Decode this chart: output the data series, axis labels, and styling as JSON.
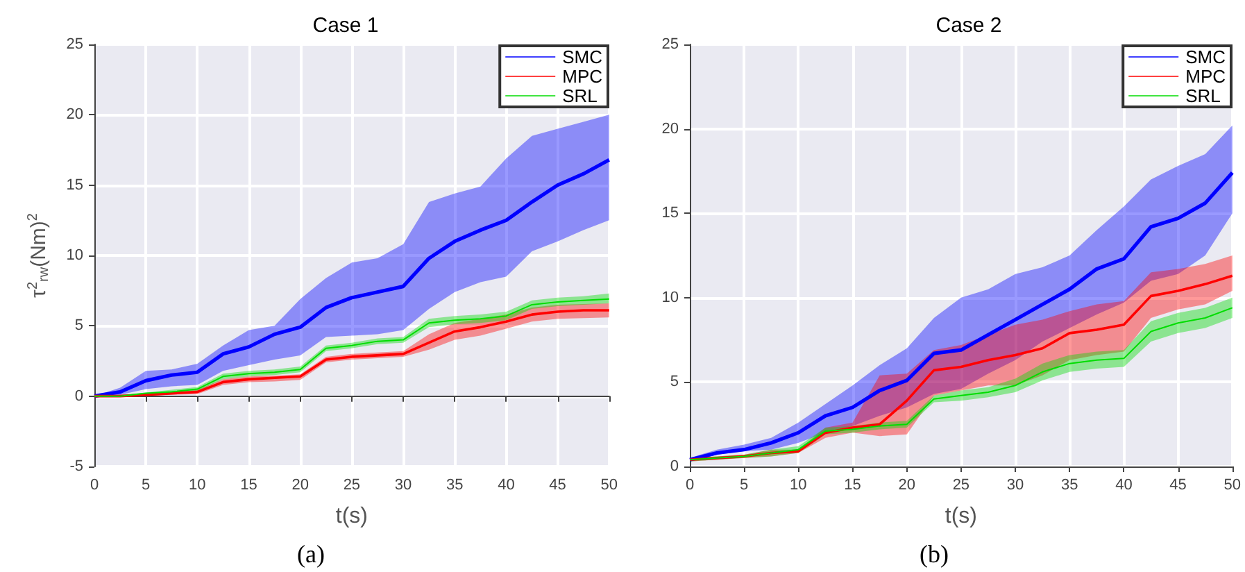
{
  "chart_data": [
    {
      "type": "line",
      "title": "Case 1",
      "xlabel": "t(s)",
      "ylabel": "τ$^{2}$$_{rw}$(Nm)$^{2}$",
      "annotations": [
        "(a)"
      ],
      "x": [
        0,
        2.5,
        5,
        7.5,
        10,
        12.5,
        15,
        17.5,
        20,
        22.5,
        25,
        27.5,
        30,
        32.5,
        35,
        37.5,
        40,
        42.5,
        45,
        47.5,
        50
      ],
      "series": [
        {
          "name": "SMC",
          "color": "#0000ff",
          "values": [
            0,
            0.3,
            1.1,
            1.5,
            1.7,
            3.0,
            3.5,
            4.4,
            4.9,
            6.3,
            7.0,
            7.4,
            7.8,
            9.8,
            11.0,
            11.8,
            12.5,
            13.8,
            15.0,
            15.8,
            16.8
          ],
          "lower": [
            0,
            0.1,
            0.5,
            0.7,
            0.8,
            1.8,
            2.2,
            2.6,
            2.9,
            4.2,
            4.3,
            4.4,
            4.7,
            6.2,
            7.4,
            8.1,
            8.5,
            10.3,
            11.0,
            11.8,
            12.5
          ],
          "upper": [
            0,
            0.6,
            1.8,
            1.9,
            2.3,
            3.6,
            4.7,
            5.0,
            6.9,
            8.4,
            9.5,
            9.8,
            10.8,
            13.8,
            14.4,
            14.9,
            16.9,
            18.5,
            19.0,
            19.5,
            20.0
          ]
        },
        {
          "name": "MPC",
          "color": "#ff0000",
          "values": [
            0,
            0,
            0.1,
            0.2,
            0.3,
            1.0,
            1.2,
            1.3,
            1.4,
            2.6,
            2.8,
            2.9,
            3.0,
            3.8,
            4.6,
            4.9,
            5.3,
            5.8,
            6.0,
            6.1,
            6.1
          ],
          "lower": [
            0,
            0,
            0,
            0.1,
            0.15,
            0.8,
            1.0,
            1.05,
            1.15,
            2.4,
            2.6,
            2.7,
            2.8,
            3.3,
            4.0,
            4.3,
            4.8,
            5.3,
            5.5,
            5.55,
            5.6
          ],
          "upper": [
            0,
            0.1,
            0.2,
            0.3,
            0.45,
            1.2,
            1.4,
            1.45,
            1.55,
            2.8,
            3.0,
            3.1,
            3.2,
            4.4,
            5.2,
            5.5,
            5.8,
            6.3,
            6.5,
            6.55,
            6.6
          ]
        },
        {
          "name": "SRL",
          "color": "#00dd00",
          "values": [
            0,
            0,
            0.2,
            0.3,
            0.5,
            1.4,
            1.6,
            1.7,
            1.9,
            3.4,
            3.6,
            3.9,
            4.0,
            5.2,
            5.4,
            5.5,
            5.7,
            6.5,
            6.7,
            6.8,
            6.9
          ],
          "lower": [
            0,
            0,
            0.05,
            0.15,
            0.35,
            1.2,
            1.4,
            1.5,
            1.7,
            3.2,
            3.4,
            3.7,
            3.8,
            4.9,
            5.1,
            5.2,
            5.4,
            6.2,
            6.4,
            6.5,
            6.6
          ],
          "upper": [
            0,
            0.1,
            0.25,
            0.45,
            0.65,
            1.6,
            1.8,
            1.9,
            2.1,
            3.6,
            3.8,
            4.1,
            4.2,
            5.5,
            5.7,
            5.8,
            6.0,
            6.8,
            7.0,
            7.1,
            7.3
          ]
        }
      ],
      "xlim": [
        0,
        50
      ],
      "xticks": [
        0,
        5,
        10,
        15,
        20,
        25,
        30,
        35,
        40,
        45,
        50
      ],
      "ylim": [
        -5,
        25
      ],
      "yticks": [
        -5,
        0,
        5,
        10,
        15,
        20,
        25
      ],
      "grid": true,
      "legend": "top right",
      "marker": "none",
      "line_style": "solid"
    },
    {
      "type": "line",
      "title": "Case 2",
      "xlabel": "t(s)",
      "annotations": [
        "(b)"
      ],
      "x": [
        0,
        2.5,
        5,
        7.5,
        10,
        12.5,
        15,
        17.5,
        20,
        22.5,
        25,
        27.5,
        30,
        32.5,
        35,
        37.5,
        40,
        42.5,
        45,
        47.5,
        50
      ],
      "series": [
        {
          "name": "SMC",
          "color": "#0000ff",
          "values": [
            0.4,
            0.8,
            1.0,
            1.4,
            2.0,
            3.0,
            3.5,
            4.5,
            5.1,
            6.7,
            6.9,
            7.8,
            8.7,
            9.6,
            10.5,
            11.7,
            12.3,
            14.2,
            14.7,
            15.6,
            17.4
          ],
          "lower": [
            0.3,
            0.7,
            0.9,
            1.0,
            1.4,
            2.0,
            2.4,
            3.0,
            3.5,
            4.3,
            4.6,
            5.5,
            6.3,
            7.4,
            8.2,
            9.0,
            9.7,
            11.0,
            11.4,
            12.5,
            15.0
          ],
          "upper": [
            0.5,
            1.0,
            1.3,
            1.7,
            2.6,
            3.7,
            4.8,
            6.0,
            7.0,
            8.8,
            10.0,
            10.5,
            11.4,
            11.8,
            12.5,
            14.0,
            15.4,
            17.0,
            17.8,
            18.5,
            20.2
          ]
        },
        {
          "name": "MPC",
          "color": "#ff0000",
          "values": [
            0.4,
            0.5,
            0.6,
            0.8,
            0.9,
            2.0,
            2.3,
            2.5,
            3.9,
            5.7,
            5.9,
            6.3,
            6.6,
            7.0,
            7.9,
            8.1,
            8.4,
            10.1,
            10.4,
            10.8,
            11.3
          ],
          "lower": [
            0.3,
            0.4,
            0.5,
            0.6,
            0.8,
            1.7,
            2.0,
            1.8,
            1.9,
            4.2,
            4.5,
            4.8,
            4.8,
            5.4,
            6.3,
            6.6,
            6.8,
            8.8,
            9.3,
            9.6,
            10.4
          ],
          "upper": [
            0.5,
            0.6,
            0.7,
            1.0,
            1.0,
            2.3,
            2.6,
            5.4,
            5.5,
            6.9,
            7.2,
            7.8,
            8.4,
            8.7,
            9.2,
            9.6,
            9.8,
            11.5,
            11.7,
            12.0,
            12.5
          ]
        },
        {
          "name": "SRL",
          "color": "#00dd00",
          "values": [
            0.4,
            0.5,
            0.6,
            0.8,
            1.0,
            2.1,
            2.2,
            2.4,
            2.5,
            4.0,
            4.2,
            4.4,
            4.8,
            5.6,
            6.1,
            6.3,
            6.4,
            8.0,
            8.5,
            8.8,
            9.4
          ],
          "lower": [
            0.3,
            0.4,
            0.5,
            0.6,
            0.8,
            1.9,
            2.0,
            2.2,
            2.3,
            3.8,
            3.9,
            4.1,
            4.4,
            5.1,
            5.6,
            5.8,
            5.9,
            7.4,
            7.9,
            8.2,
            8.8
          ],
          "upper": [
            0.5,
            0.6,
            0.7,
            1.0,
            1.2,
            2.3,
            2.4,
            2.6,
            2.7,
            4.2,
            4.5,
            4.7,
            5.2,
            6.1,
            6.6,
            6.8,
            6.9,
            8.6,
            9.1,
            9.4,
            10.0
          ]
        }
      ],
      "xlim": [
        0,
        50
      ],
      "xticks": [
        0,
        5,
        10,
        15,
        20,
        25,
        30,
        35,
        40,
        45,
        50
      ],
      "ylim": [
        0,
        25
      ],
      "yticks": [
        0,
        5,
        10,
        15,
        20,
        25
      ],
      "grid": true,
      "legend": "top right",
      "marker": "none",
      "line_style": "solid"
    }
  ]
}
